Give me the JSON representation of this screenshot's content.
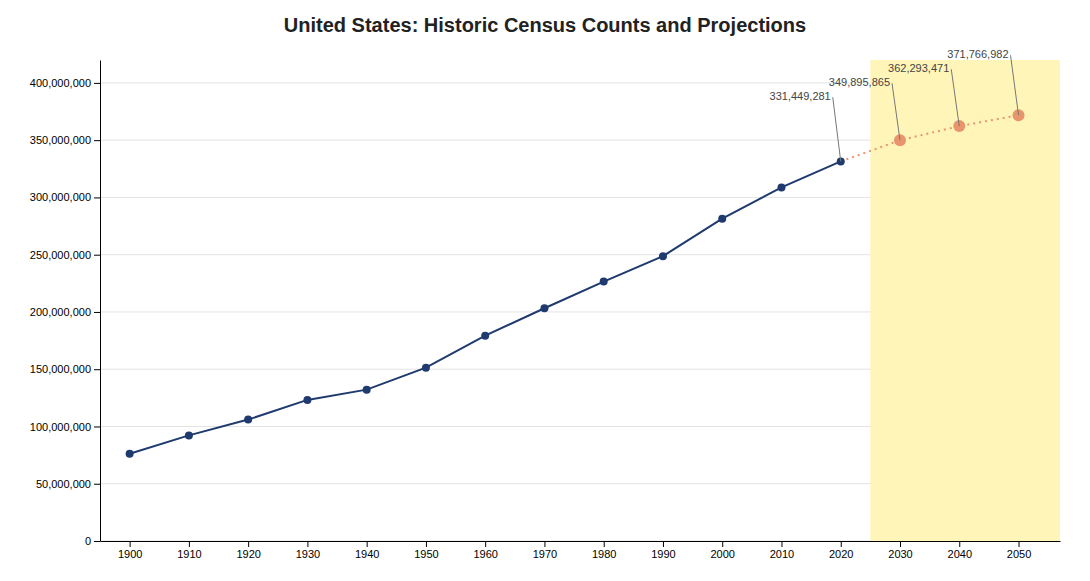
{
  "chart_data": {
    "type": "line",
    "title": "United States: Historic Census Counts and Projections",
    "series": [
      {
        "x": [
          1900,
          1910,
          1920,
          1930,
          1940,
          1950,
          1960,
          1970,
          1980,
          1990,
          2000,
          2010,
          2020
        ],
        "values": [
          76212168,
          92228496,
          106021537,
          123202624,
          132164569,
          151325798,
          179323175,
          203211926,
          226545805,
          248709873,
          281421906,
          308745538,
          331449281
        ],
        "color": "#1f3a6e",
        "marker": "circle",
        "line_style": "solid"
      },
      {
        "x": [
          2020,
          2030,
          2040,
          2050
        ],
        "values": [
          331449281,
          349895865,
          362293471,
          371766982
        ],
        "color": "#e8956d",
        "marker": "circle",
        "line_style": "dotted"
      }
    ],
    "spans": [
      {
        "x": [
          2025,
          2057
        ],
        "color": "#fff5b8"
      }
    ],
    "annotations": [
      {
        "text": "331,449,281",
        "x": 2020,
        "y": 331449281
      },
      {
        "text": "349,895,865",
        "x": 2030,
        "y": 349895865
      },
      {
        "text": "362,293,471",
        "x": 2040,
        "y": 362293471
      },
      {
        "text": "371,766,982",
        "x": 2050,
        "y": 371766982
      }
    ],
    "xlim": [
      1895,
      2057
    ],
    "xticks": [
      1900,
      1910,
      1920,
      1930,
      1940,
      1950,
      1960,
      1970,
      1980,
      1990,
      2000,
      2010,
      2020,
      2030,
      2040,
      2050
    ],
    "ylim": [
      0,
      420000000
    ],
    "yticks": [
      0,
      {
        "value": 50000000,
        "label": "50,000,000"
      },
      {
        "value": 100000000,
        "label": "100,000,000"
      },
      {
        "value": 150000000,
        "label": "150,000,000"
      },
      {
        "value": 200000000,
        "label": "200,000,000"
      },
      {
        "value": 250000000,
        "label": "250,000,000"
      },
      {
        "value": 300000000,
        "label": "300,000,000"
      },
      {
        "value": 350000000,
        "label": "350,000,000"
      },
      {
        "value": 400000000,
        "label": "400,000,000"
      }
    ],
    "grid": "y"
  }
}
